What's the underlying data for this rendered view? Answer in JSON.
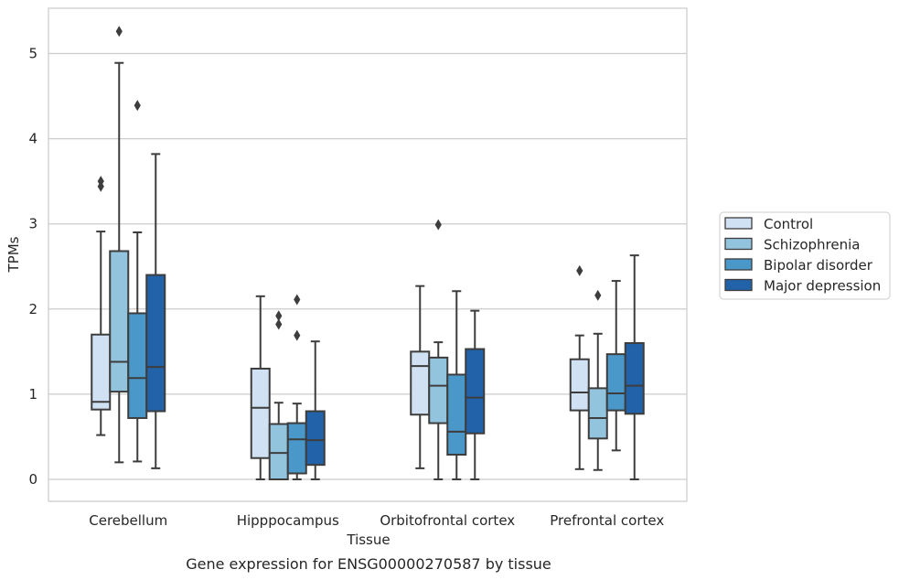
{
  "chart_data": {
    "type": "box",
    "title": "",
    "caption": "Gene expression for ENSG00000270587 by tissue",
    "xlabel": "Tissue",
    "ylabel": "TPMs",
    "ylim": [
      -0.25,
      5.5
    ],
    "yticks": [
      0,
      1,
      2,
      3,
      4,
      5
    ],
    "grid": "horizontal",
    "legend_position": "right",
    "categories": [
      "Cerebellum",
      "Hipppocampus",
      "Orbitofrontal cortex",
      "Prefrontal cortex"
    ],
    "series": [
      {
        "name": "Control",
        "color": "#cfe1f2",
        "boxes": [
          {
            "whislo": 0.52,
            "q1": 0.82,
            "med": 0.91,
            "q3": 1.7,
            "whishi": 2.91,
            "fliers": [
              3.44,
              3.5
            ]
          },
          {
            "whislo": 0.0,
            "q1": 0.25,
            "med": 0.84,
            "q3": 1.3,
            "whishi": 2.15,
            "fliers": []
          },
          {
            "whislo": 0.13,
            "q1": 0.76,
            "med": 1.33,
            "q3": 1.5,
            "whishi": 2.27,
            "fliers": []
          },
          {
            "whislo": 0.12,
            "q1": 0.81,
            "med": 1.02,
            "q3": 1.41,
            "whishi": 1.69,
            "fliers": [
              2.45
            ]
          }
        ]
      },
      {
        "name": "Schizophrenia",
        "color": "#93c4de",
        "boxes": [
          {
            "whislo": 0.2,
            "q1": 1.03,
            "med": 1.38,
            "q3": 2.68,
            "whishi": 4.89,
            "fliers": [
              5.26
            ]
          },
          {
            "whislo": 0.0,
            "q1": 0.0,
            "med": 0.31,
            "q3": 0.65,
            "whishi": 0.9,
            "fliers": [
              1.82,
              1.92
            ]
          },
          {
            "whislo": 0.0,
            "q1": 0.66,
            "med": 1.1,
            "q3": 1.43,
            "whishi": 1.61,
            "fliers": [
              2.99
            ]
          },
          {
            "whislo": 0.11,
            "q1": 0.48,
            "med": 0.72,
            "q3": 1.07,
            "whishi": 1.71,
            "fliers": [
              2.16
            ]
          }
        ]
      },
      {
        "name": "Bipolar disorder",
        "color": "#4a98c9",
        "boxes": [
          {
            "whislo": 0.21,
            "q1": 0.72,
            "med": 1.19,
            "q3": 1.95,
            "whishi": 2.9,
            "fliers": [
              4.39
            ]
          },
          {
            "whislo": 0.0,
            "q1": 0.07,
            "med": 0.47,
            "q3": 0.66,
            "whishi": 0.89,
            "fliers": [
              1.69,
              2.11
            ]
          },
          {
            "whislo": 0.0,
            "q1": 0.29,
            "med": 0.56,
            "q3": 1.23,
            "whishi": 2.21,
            "fliers": []
          },
          {
            "whislo": 0.34,
            "q1": 0.81,
            "med": 1.01,
            "q3": 1.47,
            "whishi": 2.33,
            "fliers": []
          }
        ]
      },
      {
        "name": "Major depression",
        "color": "#2162a8",
        "boxes": [
          {
            "whislo": 0.13,
            "q1": 0.8,
            "med": 1.32,
            "q3": 2.4,
            "whishi": 3.82,
            "fliers": []
          },
          {
            "whislo": 0.0,
            "q1": 0.17,
            "med": 0.46,
            "q3": 0.8,
            "whishi": 1.62,
            "fliers": []
          },
          {
            "whislo": 0.0,
            "q1": 0.54,
            "med": 0.96,
            "q3": 1.53,
            "whishi": 1.98,
            "fliers": []
          },
          {
            "whislo": 0.0,
            "q1": 0.77,
            "med": 1.1,
            "q3": 1.6,
            "whishi": 2.63,
            "fliers": []
          }
        ]
      }
    ]
  }
}
